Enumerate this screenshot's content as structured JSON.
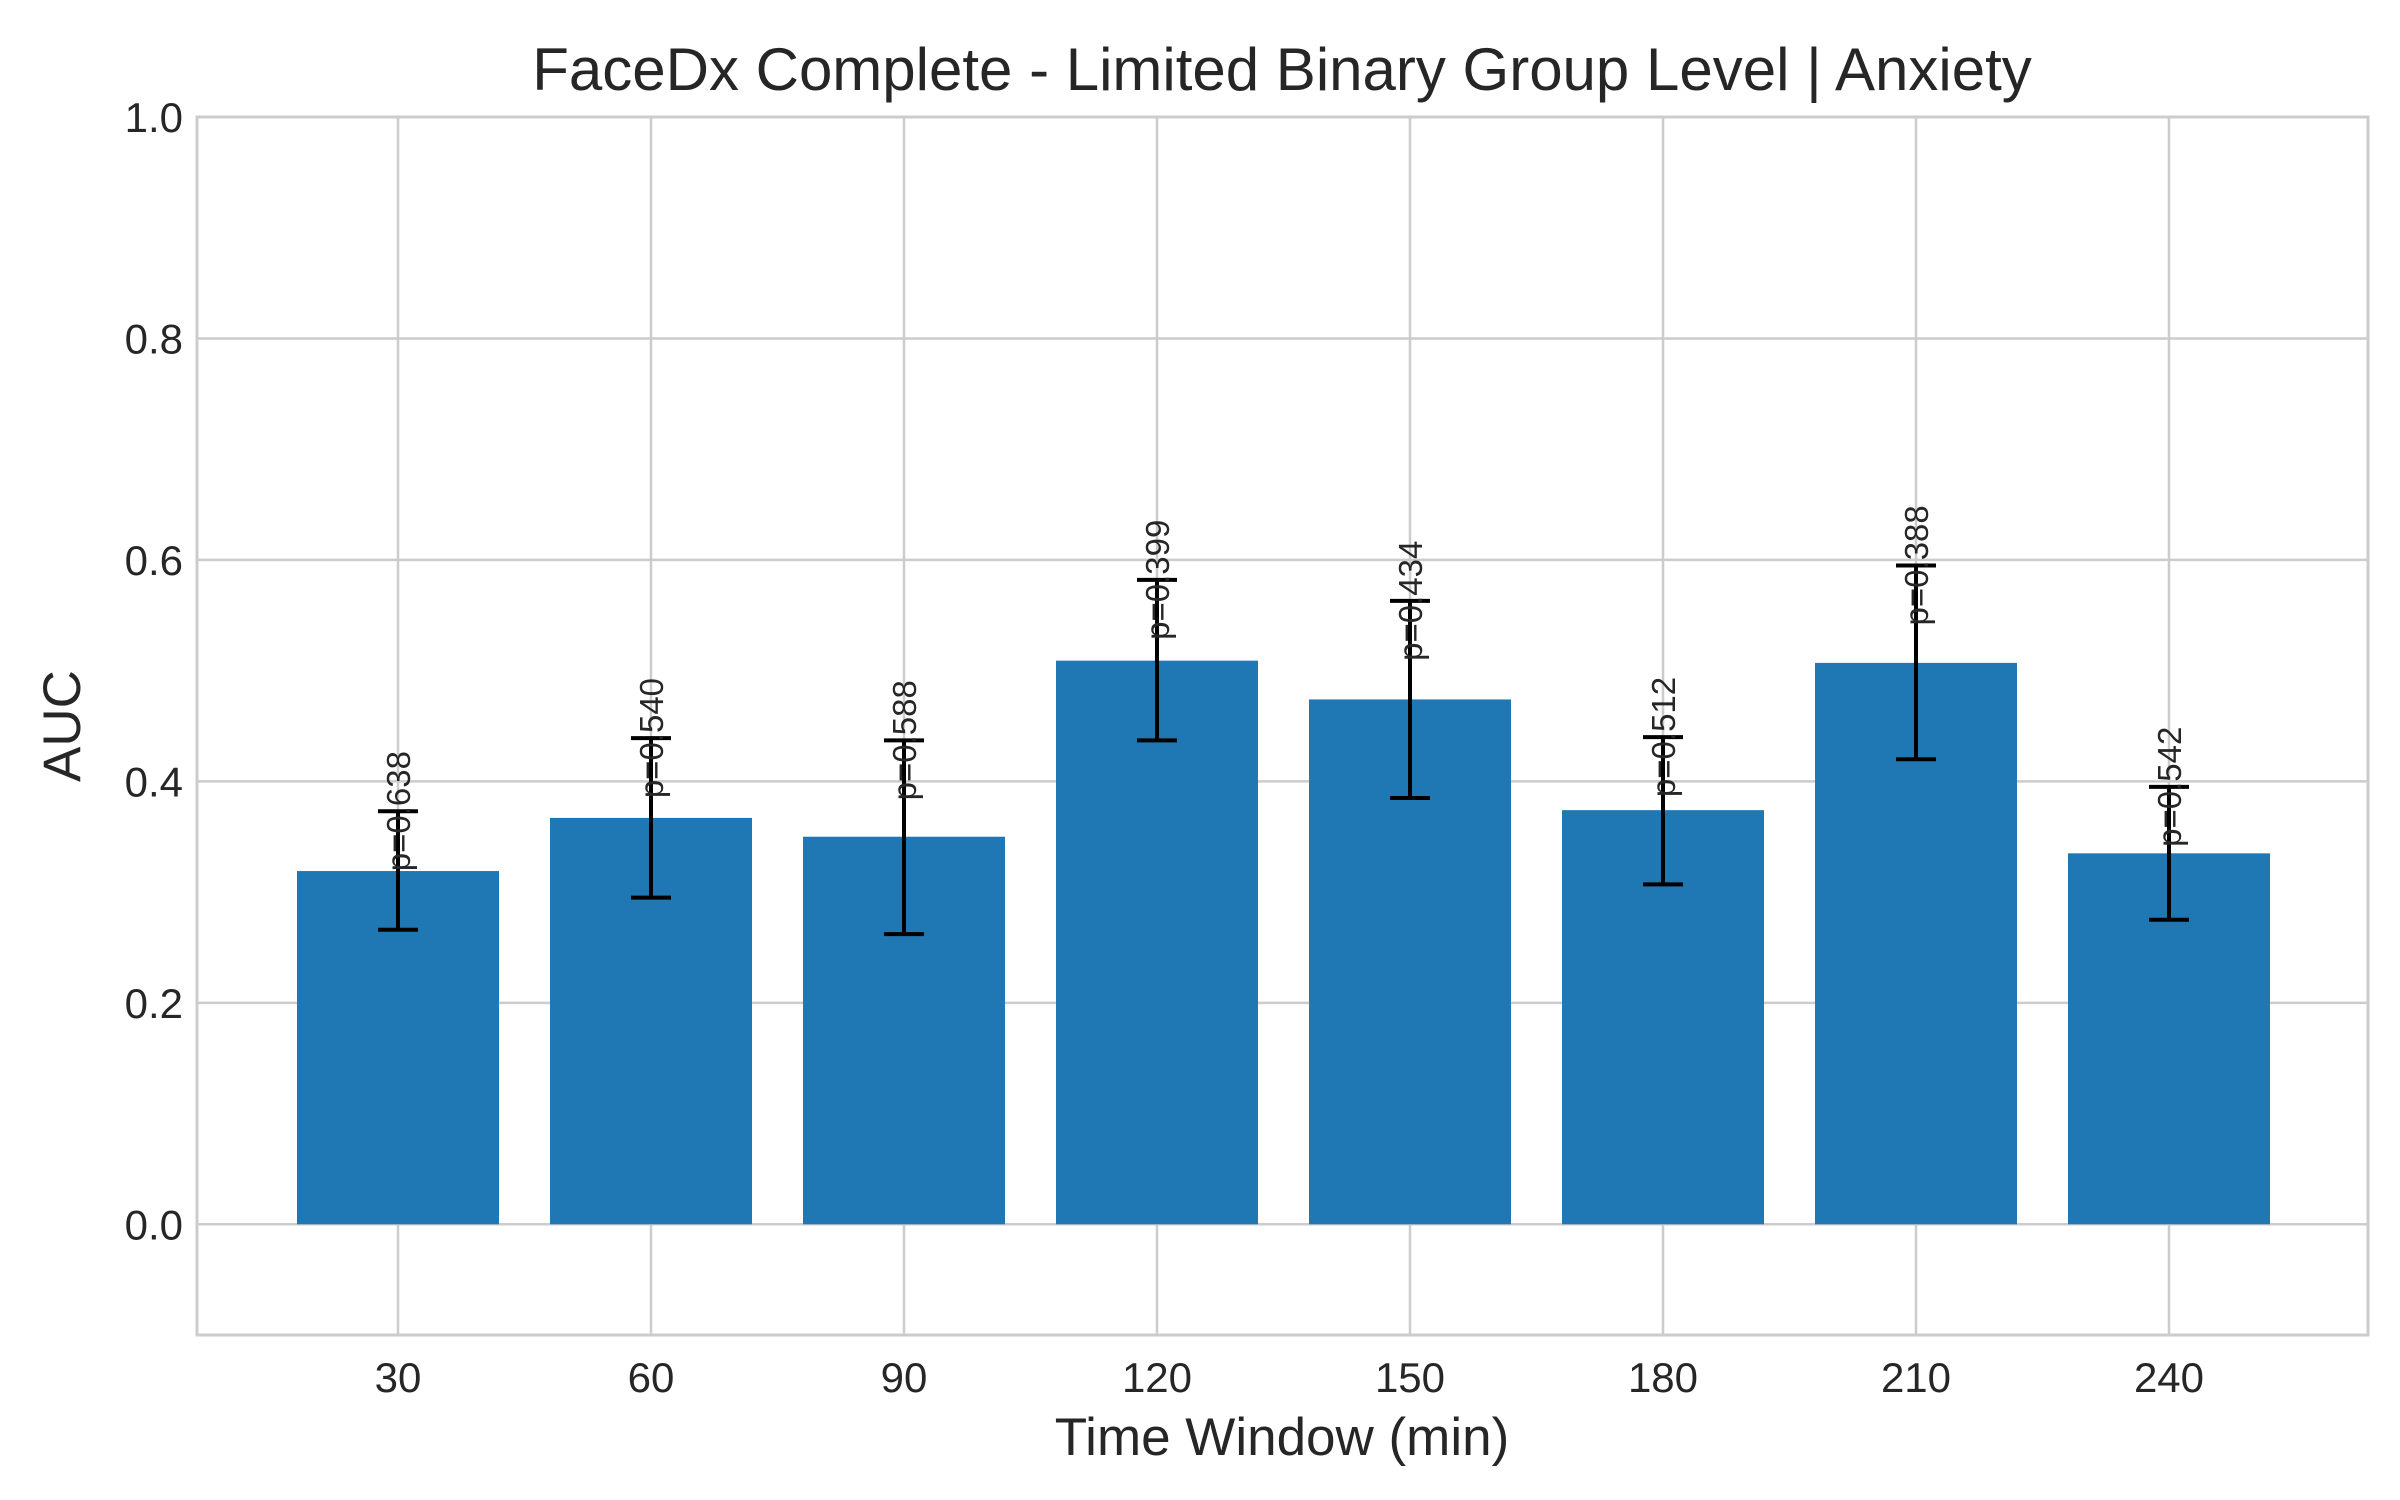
{
  "chart_data": {
    "type": "bar",
    "title": "FaceDx Complete - Limited Binary Group Level | Anxiety",
    "xlabel": "Time Window (min)",
    "ylabel": "AUC",
    "categories": [
      "30",
      "60",
      "90",
      "120",
      "150",
      "180",
      "210",
      "240"
    ],
    "values": [
      0.319,
      0.367,
      0.35,
      0.509,
      0.474,
      0.374,
      0.507,
      0.335
    ],
    "error_low": [
      0.266,
      0.295,
      0.262,
      0.437,
      0.385,
      0.307,
      0.42,
      0.275
    ],
    "error_high": [
      0.373,
      0.439,
      0.437,
      0.582,
      0.563,
      0.44,
      0.595,
      0.395
    ],
    "p_labels": [
      "p=0.638",
      "p=0.540",
      "p=0.588",
      "p=0.399",
      "p=0.434",
      "p=0.512",
      "p=0.388",
      "p=0.542"
    ],
    "ylim": [
      -0.1,
      1.0
    ],
    "yticks": [
      "0.0",
      "0.2",
      "0.4",
      "0.6",
      "0.8",
      "1.0"
    ],
    "ytick_values": [
      0.0,
      0.2,
      0.4,
      0.6,
      0.8,
      1.0
    ],
    "grid": true,
    "bar_color": "#1f77b4",
    "grid_color": "#cccccc"
  }
}
